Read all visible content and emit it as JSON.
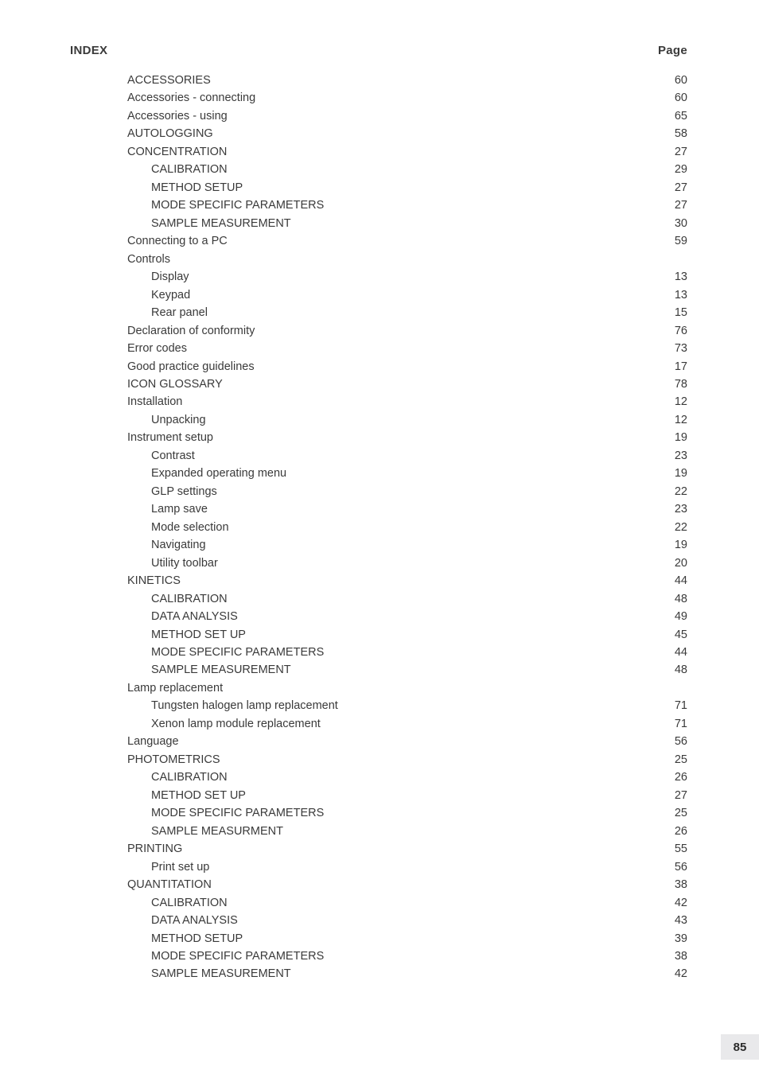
{
  "header": {
    "left": "INDEX",
    "right": "Page"
  },
  "page_number": "85",
  "colors": {
    "text": "#3a3a3a",
    "background": "#ffffff",
    "pagebox_bg": "#e9e9eb"
  },
  "entries": [
    {
      "label": "ACCESSORIES",
      "page": "60",
      "level": 0
    },
    {
      "label": "Accessories - connecting",
      "page": "60",
      "level": 0
    },
    {
      "label": "Accessories - using",
      "page": "65",
      "level": 0
    },
    {
      "label": "AUTOLOGGING",
      "page": "58",
      "level": 0
    },
    {
      "label": "CONCENTRATION",
      "page": "27",
      "level": 0
    },
    {
      "label": "CALIBRATION",
      "page": "29",
      "level": 1
    },
    {
      "label": "METHOD SETUP",
      "page": "27",
      "level": 1
    },
    {
      "label": "MODE SPECIFIC PARAMETERS",
      "page": "27",
      "level": 1
    },
    {
      "label": "SAMPLE MEASUREMENT",
      "page": "30",
      "level": 1
    },
    {
      "label": "Connecting to a PC",
      "page": "59",
      "level": 0
    },
    {
      "label": "Controls",
      "page": "",
      "level": 0
    },
    {
      "label": "Display",
      "page": "13",
      "level": 1
    },
    {
      "label": "Keypad",
      "page": "13",
      "level": 1
    },
    {
      "label": "Rear panel",
      "page": "15",
      "level": 1
    },
    {
      "label": "Declaration of conformity",
      "page": "76",
      "level": 0
    },
    {
      "label": "Error codes",
      "page": "73",
      "level": 0
    },
    {
      "label": "Good practice guidelines",
      "page": "17",
      "level": 0
    },
    {
      "label": "ICON GLOSSARY",
      "page": "78",
      "level": 0
    },
    {
      "label": "Installation",
      "page": "12",
      "level": 0
    },
    {
      "label": "Unpacking",
      "page": "12",
      "level": 1
    },
    {
      "label": "Instrument setup",
      "page": "19",
      "level": 0
    },
    {
      "label": "Contrast",
      "page": "23",
      "level": 1
    },
    {
      "label": "Expanded operating menu",
      "page": "19",
      "level": 1
    },
    {
      "label": "GLP settings",
      "page": "22",
      "level": 1
    },
    {
      "label": "Lamp save",
      "page": "23",
      "level": 1
    },
    {
      "label": "Mode selection",
      "page": "22",
      "level": 1
    },
    {
      "label": "Navigating",
      "page": "19",
      "level": 1
    },
    {
      "label": "Utility toolbar",
      "page": "20",
      "level": 1
    },
    {
      "label": "KINETICS",
      "page": "44",
      "level": 0
    },
    {
      "label": "CALIBRATION",
      "page": "48",
      "level": 1
    },
    {
      "label": "DATA ANALYSIS",
      "page": "49",
      "level": 1
    },
    {
      "label": "METHOD SET UP",
      "page": "45",
      "level": 1
    },
    {
      "label": "MODE SPECIFIC PARAMETERS",
      "page": "44",
      "level": 1
    },
    {
      "label": "SAMPLE MEASUREMENT",
      "page": "48",
      "level": 1
    },
    {
      "label": "Lamp replacement",
      "page": "",
      "level": 0
    },
    {
      "label": "Tungsten halogen lamp replacement",
      "page": "71",
      "level": 1
    },
    {
      "label": "Xenon lamp module replacement",
      "page": "71",
      "level": 1
    },
    {
      "label": "Language",
      "page": "56",
      "level": 0
    },
    {
      "label": "PHOTOMETRICS",
      "page": "25",
      "level": 0
    },
    {
      "label": "CALIBRATION",
      "page": "26",
      "level": 1
    },
    {
      "label": "METHOD SET UP",
      "page": "27",
      "level": 1
    },
    {
      "label": "MODE SPECIFIC PARAMETERS",
      "page": "25",
      "level": 1
    },
    {
      "label": "SAMPLE MEASURMENT",
      "page": "26",
      "level": 1
    },
    {
      "label": "PRINTING",
      "page": "55",
      "level": 0
    },
    {
      "label": "Print set up",
      "page": "56",
      "level": 1
    },
    {
      "label": "QUANTITATION",
      "page": "38",
      "level": 0
    },
    {
      "label": "CALIBRATION",
      "page": "42",
      "level": 1
    },
    {
      "label": "DATA ANALYSIS",
      "page": "43",
      "level": 1
    },
    {
      "label": "METHOD SETUP",
      "page": "39",
      "level": 1
    },
    {
      "label": "MODE SPECIFIC PARAMETERS",
      "page": "38",
      "level": 1
    },
    {
      "label": "SAMPLE MEASUREMENT",
      "page": "42",
      "level": 1
    }
  ]
}
